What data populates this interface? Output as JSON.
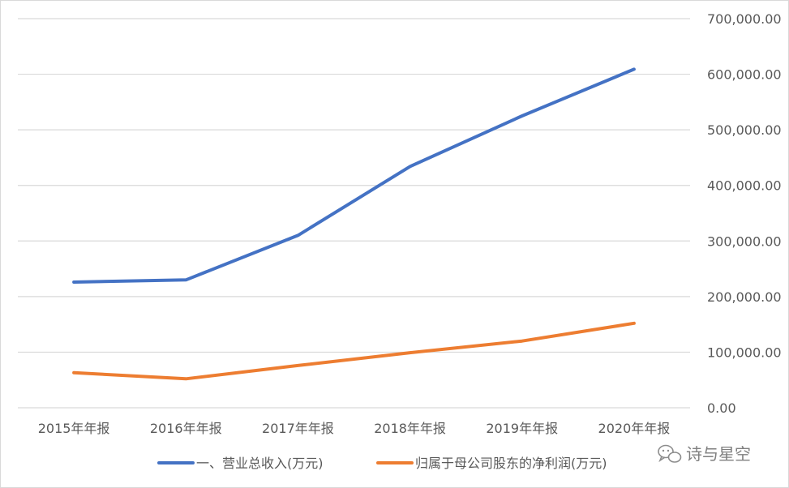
{
  "chart_data": {
    "type": "line",
    "categories": [
      "2015年年报",
      "2016年年报",
      "2017年年报",
      "2018年年报",
      "2019年年报",
      "2020年年报"
    ],
    "series": [
      {
        "name": "一、营业总收入(万元)",
        "color": "#4472C4",
        "values": [
          226000,
          230000,
          310000,
          434000,
          525000,
          609000
        ]
      },
      {
        "name": "归属于母公司股东的净利润(万元)",
        "color": "#ED7D31",
        "values": [
          63000,
          52000,
          76000,
          99000,
          120000,
          152000
        ]
      }
    ],
    "y_axis_position": "right",
    "ylim": [
      0,
      700000
    ],
    "y_ticks": [
      "0.00",
      "100,000.00",
      "200,000.00",
      "300,000.00",
      "400,000.00",
      "500,000.00",
      "600,000.00",
      "700,000.00"
    ],
    "grid": true,
    "legend_position": "bottom",
    "title": "",
    "xlabel": "",
    "ylabel": ""
  },
  "watermark": {
    "text": "诗与星空",
    "icon": "wechat-icon"
  }
}
